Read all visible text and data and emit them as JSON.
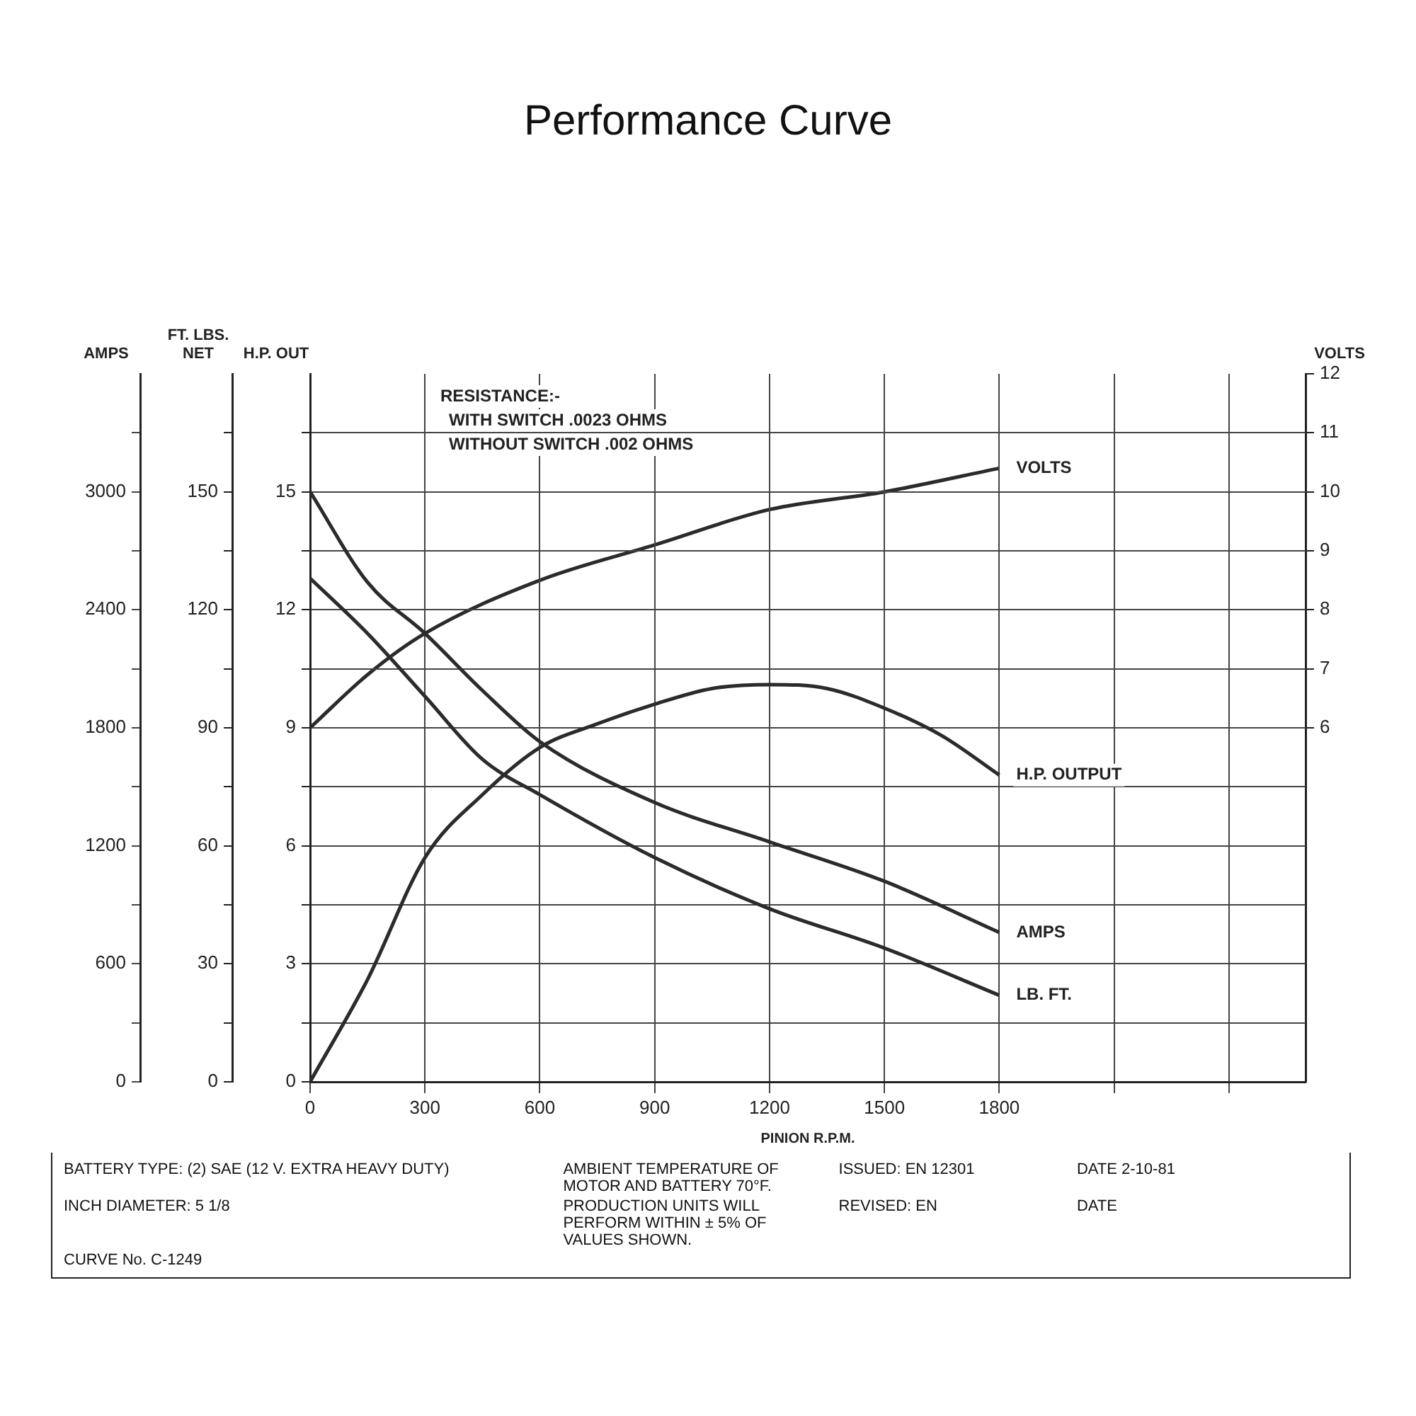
{
  "chart_data": [
    {
      "type": "line",
      "title": "Performance Curve",
      "xlabel": "PINION R.P.M.",
      "ylabel": "AMPS",
      "y3label": "FT. LBS. NET",
      "y2label": "H.P. OUT",
      "xlim": [
        0,
        2600
      ],
      "xticks": [
        0,
        300,
        600,
        900,
        1200,
        1500,
        1800,
        {
          "value": 2100,
          "label": null
        },
        {
          "value": 2400,
          "label": null
        }
      ],
      "ylim": [
        0,
        3600
      ],
      "yticks": [
        0,
        {
          "value": 300,
          "label": null
        },
        600,
        {
          "value": 900,
          "label": null
        },
        1200,
        {
          "value": 1500,
          "label": null
        },
        1800,
        {
          "value": 2100,
          "label": null
        },
        2400,
        {
          "value": 2700,
          "label": null
        },
        3000,
        {
          "value": 3300,
          "label": null
        }
      ],
      "y3lim": [
        0,
        180
      ],
      "y3ticks": [
        0,
        {
          "value": 15,
          "label": null
        },
        30,
        {
          "value": 45,
          "label": null
        },
        60,
        {
          "value": 75,
          "label": null
        },
        90,
        {
          "value": 105,
          "label": null
        },
        120,
        {
          "value": 135,
          "label": null
        },
        150,
        {
          "value": 165,
          "label": null
        }
      ],
      "y2lim": [
        0,
        18
      ],
      "y2ticks": [
        0,
        {
          "value": 1.5,
          "label": null
        },
        3,
        {
          "value": 4.5,
          "label": null
        },
        6,
        {
          "value": 7.5,
          "label": null
        },
        9,
        {
          "value": 10.5,
          "label": null
        },
        12,
        {
          "value": 13.5,
          "label": null
        },
        15,
        {
          "value": 16.5,
          "label": null
        }
      ],
      "grid": true,
      "legend": false,
      "marker": "none",
      "line_style": "solid",
      "series": [
        {
          "name": "H.P. OUTPUT",
          "color": "#2b2b2b",
          "axis": "y2",
          "x": [
            0,
            150,
            300,
            450,
            600,
            750,
            900,
            1050,
            1200,
            1350,
            1500,
            1650,
            1800
          ],
          "values": [
            0,
            2.6,
            5.7,
            7.3,
            8.5,
            9.1,
            9.6,
            10,
            10.1,
            10,
            9.5,
            8.8,
            7.8
          ]
        },
        {
          "name": "AMPS",
          "color": "#2b2b2b",
          "x": [
            0,
            150,
            300,
            450,
            600,
            900,
            1200,
            1500,
            1800
          ],
          "values": [
            3000,
            2540,
            2280,
            1990,
            1730,
            1420,
            1220,
            1020,
            760
          ]
        },
        {
          "name": "LB. FT.",
          "color": "#2b2b2b",
          "axis": "y3",
          "x": [
            0,
            150,
            300,
            450,
            600,
            900,
            1200,
            1500,
            1800
          ],
          "values": [
            128,
            114,
            98,
            82,
            73,
            57,
            44,
            34,
            22
          ]
        }
      ],
      "annotations": [
        "RESISTANCE:-",
        "WITH SWITCH .0023 OHMS",
        "WITHOUT SWITCH .002 OHMS",
        "BATTERY TYPE: (2) SAE (12 V. EXTRA HEAVY DUTY)",
        "AMBIENT TEMPERATURE OF MOTOR AND BATTERY 70°F.",
        "ISSUED: EN 12301",
        "DATE 2-10-81",
        "INCH DIAMETER: 5 1/8",
        "PRODUCTION UNITS WILL PERFORM WITHIN ± 5% OF VALUES SHOWN.",
        "REVISED: EN",
        "DATE",
        "CURVE No. C-1249"
      ]
    },
    {
      "type": "line",
      "ylabel": "VOLTS",
      "xlim": [
        0,
        2600
      ],
      "tick_labels": "y",
      "ylim": [
        0,
        12
      ],
      "yticks": [
        6,
        7,
        8,
        9,
        10,
        11,
        12
      ],
      "legend": false,
      "marker": "none",
      "line_style": "solid",
      "series": [
        {
          "name": "VOLTS",
          "color": "#2b2b2b",
          "x": [
            0,
            150,
            300,
            600,
            900,
            1200,
            1500,
            1800
          ],
          "values": [
            6.0,
            6.9,
            7.6,
            8.5,
            9.1,
            9.7,
            10.0,
            10.4
          ]
        }
      ]
    }
  ]
}
